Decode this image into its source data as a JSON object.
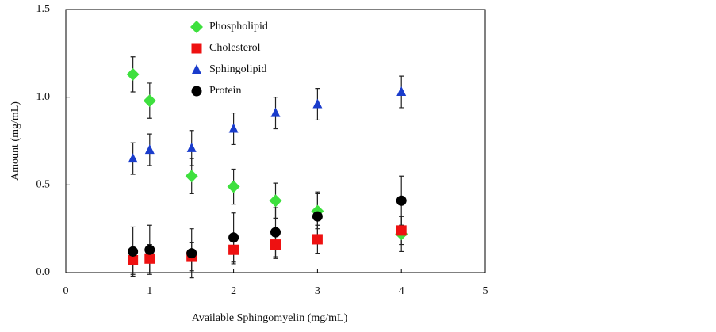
{
  "chart_data": {
    "type": "scatter",
    "x_label": "Available Sphingomyelin (mg/mL)",
    "y_label": "Amount (mg/mL)",
    "xlim": [
      0,
      5
    ],
    "xticks": [
      0,
      1,
      2,
      3,
      4,
      5
    ],
    "ylim": [
      0,
      1.5
    ],
    "yticks": [
      {
        "value": 0,
        "label": "0.0"
      },
      {
        "value": 0.5,
        "label": "0.5"
      },
      {
        "value": 1,
        "label": "1.0"
      },
      {
        "value": 1.5,
        "label": "1.5"
      }
    ],
    "legend": "upper left",
    "x": [
      0.8,
      1,
      1.5,
      2,
      2.5,
      3,
      4
    ],
    "series": [
      {
        "name": "Phospholipid",
        "color": "#3ee03e",
        "marker": "diamond",
        "values": [
          1.13,
          0.98,
          0.55,
          0.49,
          0.41,
          0.35,
          0.22
        ],
        "errors": [
          0.1,
          0.1,
          0.1,
          0.1,
          0.1,
          0.1,
          0.1
        ]
      },
      {
        "name": "Cholesterol",
        "color": "#ee1111",
        "marker": "square",
        "values": [
          0.07,
          0.08,
          0.09,
          0.13,
          0.16,
          0.19,
          0.24
        ],
        "errors": [
          0.08,
          0.08,
          0.08,
          0.08,
          0.08,
          0.08,
          0.08
        ]
      },
      {
        "name": "Sphingolipid",
        "color": "#1a3ccc",
        "marker": "triangle",
        "values": [
          0.65,
          0.7,
          0.71,
          0.82,
          0.91,
          0.96,
          1.03
        ],
        "errors": [
          0.09,
          0.09,
          0.1,
          0.09,
          0.09,
          0.09,
          0.09
        ]
      },
      {
        "name": "Protein",
        "color": "#000000",
        "marker": "circle",
        "values": [
          0.12,
          0.13,
          0.11,
          0.2,
          0.23,
          0.32,
          0.41
        ],
        "errors": [
          0.14,
          0.14,
          0.14,
          0.14,
          0.14,
          0.14,
          0.14
        ]
      }
    ]
  }
}
